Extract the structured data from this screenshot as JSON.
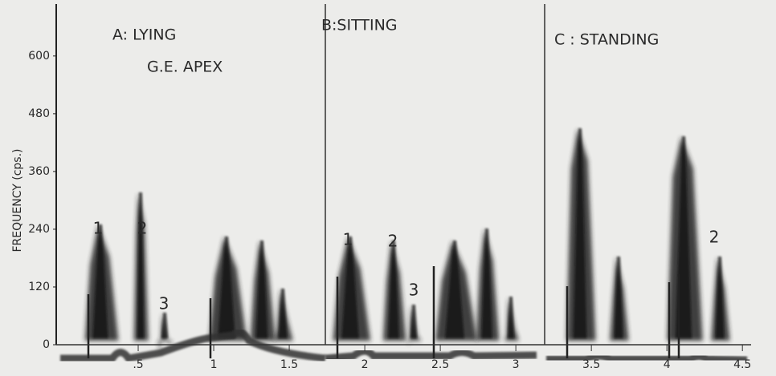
{
  "chart_data": {
    "type": "spectrogram",
    "y_label": "FREQUENCY (cps.)",
    "ylim": [
      0,
      708
    ],
    "yticks": [
      0,
      120,
      240,
      360,
      480,
      600
    ],
    "xlim": [
      0,
      4.6
    ],
    "xticks": [
      {
        "value": 0.5,
        "label": ".5"
      },
      1,
      1.5,
      2,
      2.5,
      3,
      3.5,
      4,
      4.5
    ],
    "panels": [
      "A: LYING",
      "G.E. APEX",
      "B:SITTING",
      "C : STANDING"
    ],
    "annotations": [
      "1",
      "2",
      "3",
      "1",
      "2",
      "3",
      "2"
    ]
  }
}
